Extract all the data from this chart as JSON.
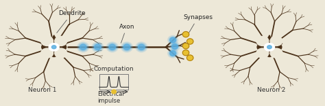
{
  "bg_color": "#ede8d8",
  "neuron_color": "#4a3018",
  "cell_body_color": "#ede8d8",
  "axon_color": "#4a3018",
  "blue_node_color": "#5aaee0",
  "yellow_synapse_color": "#e8c030",
  "labels": {
    "dendrite": "Dendrite",
    "axon": "Axon",
    "synapses": "Synapses",
    "computation": "Computation",
    "electrical": "Electrical\nimpulse",
    "neuron1": "Neuron 1",
    "neuron2": "Neuron 2"
  },
  "label_fontsize": 6.5,
  "figsize": [
    4.74,
    1.56
  ],
  "dpi": 100
}
